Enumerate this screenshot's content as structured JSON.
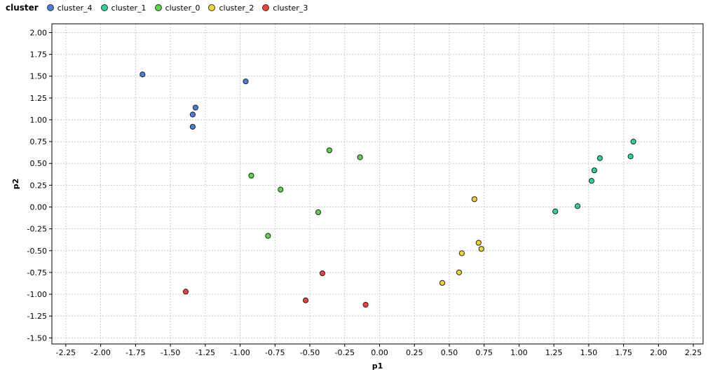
{
  "legend": {
    "title": "cluster",
    "items": [
      {
        "label": "cluster_4",
        "color": "#4e7fd6"
      },
      {
        "label": "cluster_1",
        "color": "#33d19a"
      },
      {
        "label": "cluster_0",
        "color": "#5fd34d"
      },
      {
        "label": "cluster_2",
        "color": "#f2d23a"
      },
      {
        "label": "cluster_3",
        "color": "#e8463c"
      }
    ]
  },
  "chart_data": {
    "type": "scatter",
    "title": "",
    "xlabel": "p1",
    "ylabel": "p2",
    "xlim": [
      -2.35,
      2.32
    ],
    "ylim": [
      -1.57,
      2.1
    ],
    "grid": true,
    "legend_position": "top-left",
    "x_ticks": [
      "-2.25",
      "-2.00",
      "-1.75",
      "-1.50",
      "-1.25",
      "-1.00",
      "-0.75",
      "-0.50",
      "-0.25",
      "0.00",
      "0.25",
      "0.50",
      "0.75",
      "1.00",
      "1.25",
      "1.50",
      "1.75",
      "2.00",
      "2.25"
    ],
    "y_ticks": [
      "-1.50",
      "-1.25",
      "-1.00",
      "-0.75",
      "-0.50",
      "-0.25",
      "0.00",
      "0.25",
      "0.50",
      "0.75",
      "1.00",
      "1.25",
      "1.50",
      "1.75",
      "2.00"
    ],
    "series": [
      {
        "name": "cluster_4",
        "color": "#4e7fd6",
        "points": [
          [
            -1.7,
            1.52
          ],
          [
            -0.96,
            1.44
          ],
          [
            -1.32,
            1.14
          ],
          [
            -1.34,
            1.06
          ],
          [
            -1.34,
            0.92
          ]
        ]
      },
      {
        "name": "cluster_1",
        "color": "#33d19a",
        "points": [
          [
            1.82,
            0.75
          ],
          [
            1.8,
            0.58
          ],
          [
            1.58,
            0.56
          ],
          [
            1.54,
            0.42
          ],
          [
            1.52,
            0.3
          ],
          [
            1.42,
            0.01
          ],
          [
            1.26,
            -0.05
          ]
        ]
      },
      {
        "name": "cluster_0",
        "color": "#5fd34d",
        "points": [
          [
            -0.36,
            0.65
          ],
          [
            -0.14,
            0.57
          ],
          [
            -0.92,
            0.36
          ],
          [
            -0.71,
            0.2
          ],
          [
            -0.44,
            -0.06
          ],
          [
            -0.8,
            -0.33
          ]
        ]
      },
      {
        "name": "cluster_2",
        "color": "#f2d23a",
        "points": [
          [
            0.68,
            0.09
          ],
          [
            0.71,
            -0.41
          ],
          [
            0.73,
            -0.48
          ],
          [
            0.59,
            -0.53
          ],
          [
            0.57,
            -0.75
          ],
          [
            0.45,
            -0.87
          ]
        ]
      },
      {
        "name": "cluster_3",
        "color": "#e8463c",
        "points": [
          [
            -1.39,
            -0.97
          ],
          [
            -0.41,
            -0.76
          ],
          [
            -0.53,
            -1.07
          ],
          [
            -0.1,
            -1.12
          ]
        ]
      }
    ]
  }
}
